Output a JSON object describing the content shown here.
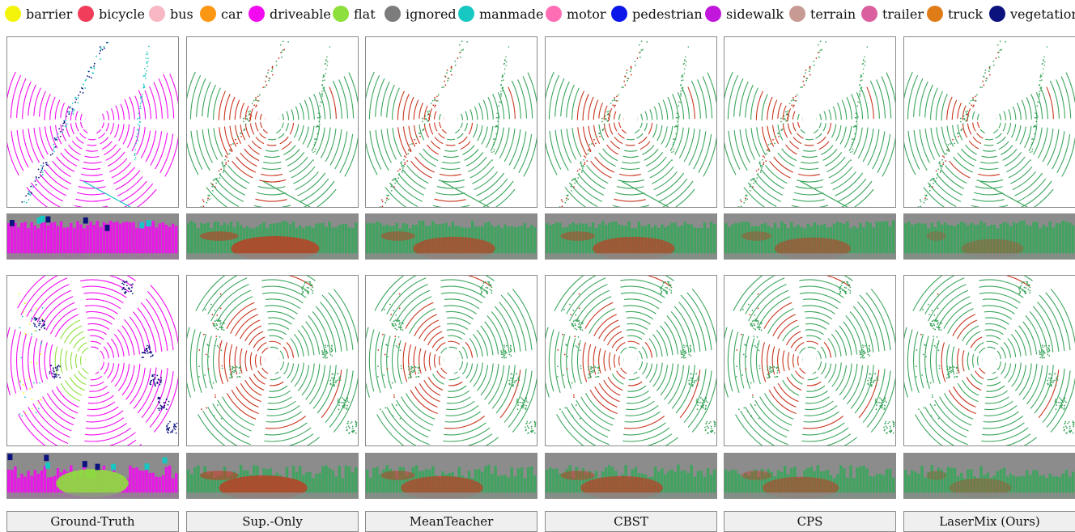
{
  "legend": [
    {
      "label": "barrier",
      "color": "#f4f40a"
    },
    {
      "label": "bicycle",
      "color": "#f23d5a"
    },
    {
      "label": "bus",
      "color": "#f7b8c4"
    },
    {
      "label": "car",
      "color": "#fb9712"
    },
    {
      "label": "driveable",
      "color": "#f20bf0"
    },
    {
      "label": "flat",
      "color": "#8de03b"
    },
    {
      "label": "ignored",
      "color": "#7c7c7c"
    },
    {
      "label": "manmade",
      "color": "#17c8c2"
    },
    {
      "label": "motor",
      "color": "#ff6eb5"
    },
    {
      "label": "pedestrian",
      "color": "#0b16e8"
    },
    {
      "label": "sidewalk",
      "color": "#c116dc"
    },
    {
      "label": "terrain",
      "color": "#c79a94"
    },
    {
      "label": "trailer",
      "color": "#da5f9e"
    },
    {
      "label": "truck",
      "color": "#e07c18"
    },
    {
      "label": "vegetation",
      "color": "#0b127e"
    }
  ],
  "columns": [
    {
      "label": "Ground-Truth"
    },
    {
      "label": "Sup.-Only"
    },
    {
      "label": "MeanTeacher"
    },
    {
      "label": "CBST"
    },
    {
      "label": "CPS"
    },
    {
      "label": "LaserMix (Ours)"
    }
  ],
  "colors": {
    "correct": "#3aa55c",
    "error": "#c8341c",
    "range_bg": "#8c8c8c"
  }
}
